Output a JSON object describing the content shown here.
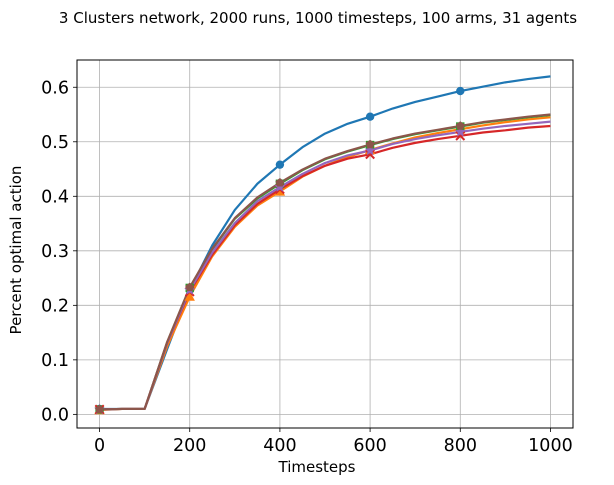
{
  "chart_data": {
    "type": "line",
    "title": "3 Clusters network, 2000 runs, 1000 timesteps, 100 arms, 31 agents",
    "xlabel": "Timesteps",
    "ylabel": "Percent optimal action",
    "xlim": [
      -50,
      1050
    ],
    "ylim": [
      -0.025,
      0.65
    ],
    "xticks": [
      0,
      200,
      400,
      600,
      800,
      1000
    ],
    "yticks": [
      0.0,
      0.1,
      0.2,
      0.3,
      0.4,
      0.5,
      0.6
    ],
    "xtick_labels": [
      "0",
      "200",
      "400",
      "600",
      "800",
      "1000"
    ],
    "ytick_labels": [
      "0.0",
      "0.1",
      "0.2",
      "0.3",
      "0.4",
      "0.5",
      "0.6"
    ],
    "grid": true,
    "legend": false,
    "x": [
      0,
      50,
      100,
      150,
      200,
      250,
      300,
      350,
      400,
      450,
      500,
      550,
      600,
      650,
      700,
      750,
      800,
      850,
      900,
      950,
      1000
    ],
    "series": [
      {
        "color": "#1f77b4",
        "marker": "circle",
        "values": [
          0.01,
          0.01,
          0.01,
          0.12,
          0.228,
          0.31,
          0.375,
          0.423,
          0.458,
          0.49,
          0.515,
          0.533,
          0.546,
          0.561,
          0.573,
          0.583,
          0.593,
          0.601,
          0.609,
          0.615,
          0.62
        ]
      },
      {
        "color": "#ff7f0e",
        "marker": "triangle-up",
        "values": [
          0.008,
          0.01,
          0.01,
          0.125,
          0.216,
          0.29,
          0.344,
          0.383,
          0.409,
          0.436,
          0.456,
          0.472,
          0.485,
          0.497,
          0.508,
          0.516,
          0.523,
          0.53,
          0.536,
          0.541,
          0.545
        ]
      },
      {
        "color": "#2ca02c",
        "marker": "square",
        "values": [
          0.009,
          0.01,
          0.01,
          0.132,
          0.232,
          0.303,
          0.359,
          0.396,
          0.423,
          0.448,
          0.468,
          0.482,
          0.494,
          0.505,
          0.514,
          0.521,
          0.528,
          0.535,
          0.54,
          0.545,
          0.549
        ]
      },
      {
        "color": "#d62728",
        "marker": "x",
        "values": [
          0.009,
          0.01,
          0.01,
          0.131,
          0.225,
          0.293,
          0.347,
          0.386,
          0.413,
          0.437,
          0.456,
          0.469,
          0.477,
          0.489,
          0.498,
          0.505,
          0.511,
          0.517,
          0.521,
          0.526,
          0.529
        ]
      },
      {
        "color": "#9467bd",
        "marker": "star",
        "values": [
          0.009,
          0.01,
          0.01,
          0.131,
          0.228,
          0.297,
          0.351,
          0.391,
          0.417,
          0.441,
          0.461,
          0.475,
          0.484,
          0.496,
          0.505,
          0.512,
          0.518,
          0.524,
          0.529,
          0.533,
          0.537
        ]
      },
      {
        "color": "#8c564b",
        "marker": "pentagon",
        "values": [
          0.009,
          0.01,
          0.01,
          0.133,
          0.233,
          0.304,
          0.36,
          0.398,
          0.425,
          0.449,
          0.469,
          0.483,
          0.495,
          0.506,
          0.515,
          0.522,
          0.529,
          0.536,
          0.541,
          0.546,
          0.55
        ]
      }
    ]
  }
}
